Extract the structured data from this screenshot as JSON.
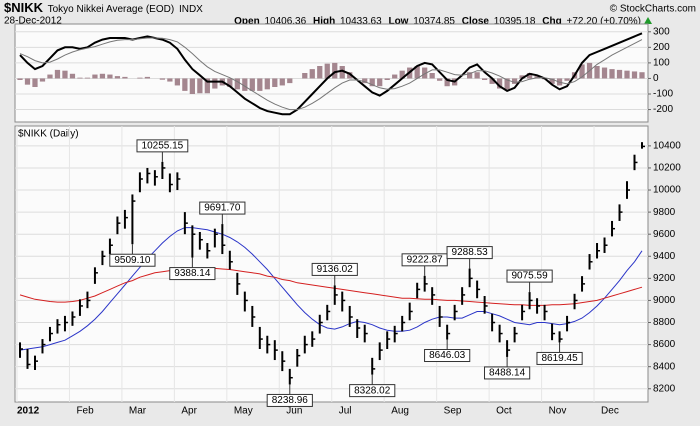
{
  "header": {
    "symbol": "$NIKK",
    "name": "Tokyo Nikkei Average (EOD)",
    "exchange": "INDX",
    "credit": "© StockCharts.com",
    "date": "28-Dec-2012",
    "open_label": "Open",
    "open": "10406.36",
    "high_label": "High",
    "high": "10433.63",
    "low_label": "Low",
    "low": "10374.85",
    "close_label": "Close",
    "close": "10395.18",
    "change_label": "Chg",
    "change": "+72.20 (+0.70%)"
  },
  "chart_data": [
    {
      "type": "macd",
      "ylim": [
        -280,
        350
      ],
      "yticks": [
        300,
        200,
        100,
        0,
        -100,
        -200
      ],
      "grid": true,
      "histogram": {
        "color": "#a4868f",
        "values": [
          -10,
          -40,
          -55,
          -20,
          25,
          55,
          50,
          30,
          5,
          5,
          25,
          30,
          25,
          15,
          10,
          0,
          5,
          10,
          0,
          -8,
          -20,
          -45,
          -80,
          -100,
          -95,
          -95,
          -65,
          -45,
          -55,
          -70,
          -80,
          -80,
          -80,
          -70,
          -55,
          -45,
          -30,
          0,
          35,
          60,
          80,
          95,
          100,
          80,
          40,
          0,
          -30,
          -50,
          -50,
          -10,
          25,
          50,
          70,
          80,
          70,
          35,
          -15,
          -50,
          -45,
          0,
          40,
          40,
          -10,
          -35,
          -65,
          -70,
          -35,
          20,
          35,
          15,
          -5,
          -35,
          -45,
          -15,
          40,
          90,
          100,
          80,
          70,
          60,
          55,
          50,
          45,
          40
        ]
      },
      "series": [
        {
          "color": "#000000",
          "values": [
            150,
            100,
            60,
            80,
            130,
            180,
            200,
            200,
            190,
            200,
            230,
            250,
            260,
            260,
            260,
            250,
            260,
            270,
            260,
            250,
            230,
            190,
            120,
            60,
            20,
            -20,
            -20,
            -20,
            -50,
            -90,
            -130,
            -160,
            -190,
            -210,
            -220,
            -230,
            -230,
            -200,
            -150,
            -100,
            -50,
            0,
            40,
            50,
            30,
            -10,
            -50,
            -90,
            -110,
            -80,
            -40,
            0,
            40,
            80,
            100,
            90,
            40,
            -10,
            -20,
            20,
            70,
            90,
            40,
            0,
            -50,
            -80,
            -60,
            0,
            30,
            20,
            0,
            -40,
            -70,
            -50,
            20,
            100,
            150,
            170,
            190,
            210,
            230,
            250,
            270,
            290
          ]
        },
        {
          "color": "#777777",
          "values": [
            160,
            140,
            115,
            100,
            105,
            125,
            150,
            170,
            185,
            195,
            205,
            220,
            235,
            245,
            250,
            250,
            255,
            260,
            260,
            258,
            250,
            235,
            200,
            160,
            115,
            75,
            45,
            25,
            5,
            -20,
            -50,
            -80,
            -110,
            -140,
            -165,
            -185,
            -200,
            -200,
            -185,
            -160,
            -130,
            -95,
            -60,
            -30,
            -10,
            -10,
            -20,
            -40,
            -60,
            -70,
            -65,
            -50,
            -30,
            0,
            30,
            55,
            55,
            40,
            25,
            20,
            30,
            50,
            50,
            35,
            15,
            -10,
            -25,
            -20,
            -5,
            5,
            5,
            -5,
            -25,
            -35,
            -20,
            10,
            50,
            90,
            120,
            150,
            175,
            200,
            225,
            250
          ]
        }
      ]
    },
    {
      "type": "ohlc",
      "title": "$NIKK (Daily)",
      "color": "#000000",
      "ylim": [
        8080,
        10580
      ],
      "yticks": [
        10400,
        10200,
        10000,
        9800,
        9600,
        9400,
        9200,
        9000,
        8800,
        8600,
        8400,
        8200
      ],
      "grid": true,
      "categories": [
        "2012",
        null,
        null,
        null,
        null,
        null,
        null,
        "Feb",
        null,
        null,
        null,
        null,
        null,
        null,
        "Mar",
        null,
        null,
        null,
        null,
        null,
        null,
        "Apr",
        null,
        null,
        null,
        null,
        null,
        null,
        "May",
        null,
        null,
        null,
        null,
        null,
        null,
        "Jun",
        null,
        null,
        null,
        null,
        null,
        null,
        "Jul",
        null,
        null,
        null,
        null,
        null,
        null,
        "Aug",
        null,
        null,
        null,
        null,
        null,
        null,
        "Sep",
        null,
        null,
        null,
        null,
        null,
        null,
        "Oct",
        null,
        null,
        null,
        null,
        null,
        null,
        "Nov",
        null,
        null,
        null,
        null,
        null,
        null,
        "Dec",
        null,
        null,
        null,
        null,
        null,
        null
      ],
      "high": [
        8620,
        8560,
        8500,
        8650,
        8760,
        8830,
        8860,
        8900,
        9010,
        9080,
        9300,
        9450,
        9560,
        9760,
        9820,
        9960,
        10160,
        10200,
        10180,
        10255.15,
        10150,
        10160,
        9800,
        9680,
        9620,
        9520,
        9650,
        9691.7,
        9450,
        9250,
        9080,
        8950,
        8760,
        8680,
        8640,
        8540,
        8380,
        8560,
        8680,
        8720,
        8870,
        8960,
        9136.02,
        9080,
        8950,
        8830,
        8780,
        8480,
        8620,
        8720,
        8770,
        8860,
        8980,
        9160,
        9222.87,
        9120,
        8950,
        8780,
        8960,
        9120,
        9288.53,
        9180,
        9040,
        8880,
        8780,
        8640,
        8760,
        8960,
        9075.59,
        9020,
        8960,
        8790,
        8720,
        8860,
        9060,
        9220,
        9420,
        9520,
        9570,
        9720,
        9870,
        10080,
        10320,
        10433.63
      ],
      "low": [
        8480,
        8380,
        8370,
        8520,
        8630,
        8700,
        8720,
        8770,
        8860,
        8930,
        9150,
        9320,
        9420,
        9600,
        9650,
        9509.1,
        9980,
        10060,
        10040,
        10100,
        9980,
        10000,
        9600,
        9388.14,
        9460,
        9380,
        9480,
        9420,
        9280,
        9050,
        8900,
        8760,
        8560,
        8520,
        8460,
        8360,
        8238.96,
        8400,
        8520,
        8580,
        8700,
        8820,
        8960,
        8900,
        8760,
        8660,
        8620,
        8328.02,
        8460,
        8560,
        8620,
        8720,
        8820,
        9020,
        9080,
        8960,
        8760,
        8646.03,
        8820,
        8960,
        9120,
        9020,
        8880,
        8720,
        8620,
        8488.14,
        8620,
        8820,
        8920,
        8880,
        8820,
        8640,
        8619.45,
        8720,
        8920,
        9080,
        9280,
        9380,
        9430,
        9580,
        9720,
        9920,
        10180,
        10374.85
      ],
      "close": [
        8560,
        8420,
        8450,
        8600,
        8700,
        8780,
        8800,
        8850,
        8950,
        9000,
        9250,
        9400,
        9500,
        9700,
        9750,
        9900,
        10100,
        10150,
        10120,
        10200,
        10050,
        10100,
        9700,
        9600,
        9550,
        9450,
        9600,
        9500,
        9350,
        9150,
        9000,
        8850,
        8650,
        8600,
        8550,
        8450,
        8300,
        8500,
        8600,
        8650,
        8800,
        8900,
        9050,
        9000,
        8850,
        8750,
        8700,
        8380,
        8550,
        8650,
        8700,
        8800,
        8900,
        9100,
        9150,
        9050,
        8850,
        8700,
        8900,
        9050,
        9200,
        9100,
        8950,
        8800,
        8700,
        8550,
        8700,
        8900,
        9000,
        8950,
        8900,
        8700,
        8650,
        8800,
        9000,
        9150,
        9350,
        9450,
        9500,
        9650,
        9800,
        10000,
        10250,
        10395.18
      ],
      "series": [
        {
          "color": "#2b35c8",
          "values": [
            8550,
            8560,
            8570,
            8580,
            8600,
            8620,
            8640,
            8680,
            8720,
            8770,
            8830,
            8900,
            8980,
            9060,
            9140,
            9220,
            9300,
            9380,
            9450,
            9520,
            9580,
            9630,
            9660,
            9660,
            9650,
            9640,
            9620,
            9600,
            9570,
            9530,
            9480,
            9420,
            9350,
            9280,
            9200,
            9120,
            9040,
            8960,
            8890,
            8830,
            8780,
            8750,
            8740,
            8760,
            8790,
            8810,
            8800,
            8780,
            8750,
            8730,
            8720,
            8720,
            8730,
            8760,
            8800,
            8830,
            8850,
            8850,
            8840,
            8840,
            8870,
            8900,
            8900,
            8880,
            8860,
            8830,
            8800,
            8790,
            8780,
            8800,
            8800,
            8790,
            8780,
            8790,
            8810,
            8840,
            8890,
            8950,
            9020,
            9100,
            9180,
            9270,
            9350,
            9450
          ]
        },
        {
          "color": "#d42020",
          "values": [
            9050,
            9030,
            9010,
            9000,
            8990,
            8985,
            8985,
            8990,
            9000,
            9020,
            9040,
            9070,
            9100,
            9130,
            9160,
            9180,
            9210,
            9230,
            9250,
            9260,
            9270,
            9280,
            9285,
            9290,
            9290,
            9290,
            9290,
            9285,
            9280,
            9270,
            9260,
            9250,
            9240,
            9220,
            9210,
            9190,
            9180,
            9160,
            9150,
            9140,
            9130,
            9120,
            9110,
            9100,
            9090,
            9080,
            9070,
            9060,
            9050,
            9040,
            9030,
            9020,
            9020,
            9015,
            9010,
            9010,
            9005,
            9000,
            9000,
            8995,
            8990,
            8985,
            8980,
            8975,
            8970,
            8965,
            8960,
            8960,
            8955,
            8955,
            8955,
            8960,
            8960,
            8965,
            8970,
            8980,
            8990,
            9000,
            9020,
            9040,
            9060,
            9080,
            9100,
            9120
          ]
        }
      ],
      "annotations": [
        {
          "value": 10255.15,
          "label": "10255.15",
          "index": 19
        },
        {
          "value": 9509.1,
          "label": "9509.10",
          "index": 15
        },
        {
          "value": 9388.14,
          "label": "9388.14",
          "index": 23
        },
        {
          "value": 9691.7,
          "label": "9691.70",
          "index": 27
        },
        {
          "value": 8238.96,
          "label": "8238.96",
          "index": 36
        },
        {
          "value": 9136.02,
          "label": "9136.02",
          "index": 42
        },
        {
          "value": 8328.02,
          "label": "8328.02",
          "index": 47
        },
        {
          "value": 9222.87,
          "label": "9222.87",
          "index": 54
        },
        {
          "value": 8646.03,
          "label": "8646.03",
          "index": 57
        },
        {
          "value": 9288.53,
          "label": "9288.53",
          "index": 60
        },
        {
          "value": 8488.14,
          "label": "8488.14",
          "index": 65
        },
        {
          "value": 9075.59,
          "label": "9075.59",
          "index": 68
        },
        {
          "value": 8619.45,
          "label": "8619.45",
          "index": 72
        }
      ]
    }
  ]
}
